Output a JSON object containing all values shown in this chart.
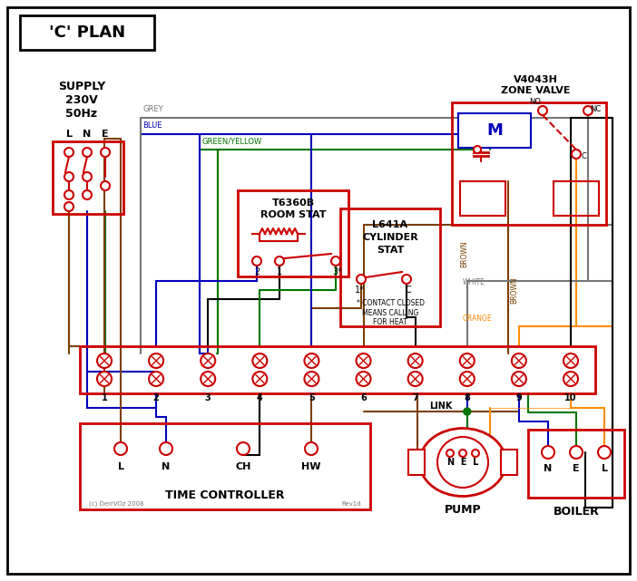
{
  "title": "'C' PLAN",
  "bg_color": "#ffffff",
  "red": "#cc0000",
  "blue": "#0000bb",
  "green": "#007700",
  "grey": "#777777",
  "brown": "#7B3F00",
  "orange": "#FF8C00",
  "black": "#000000",
  "supply_label": "SUPPLY\n230V\n50Hz",
  "zone_valve_title": "V4043H\nZONE VALVE",
  "room_stat_title": "T6360B\nROOM STAT",
  "cylinder_stat_title": "L641A\nCYLINDER\nSTAT",
  "tc_label": "TIME CONTROLLER",
  "pump_label": "PUMP",
  "boiler_label": "BOILER",
  "terminal_numbers": [
    "1",
    "2",
    "3",
    "4",
    "5",
    "6",
    "7",
    "8",
    "9",
    "10"
  ],
  "link_label": "LINK",
  "contact_note": "* CONTACT CLOSED\nMEANS CALLING\nFOR HEAT",
  "copyright": "(c) DerrVOz 2008",
  "revision": "Rev1d"
}
